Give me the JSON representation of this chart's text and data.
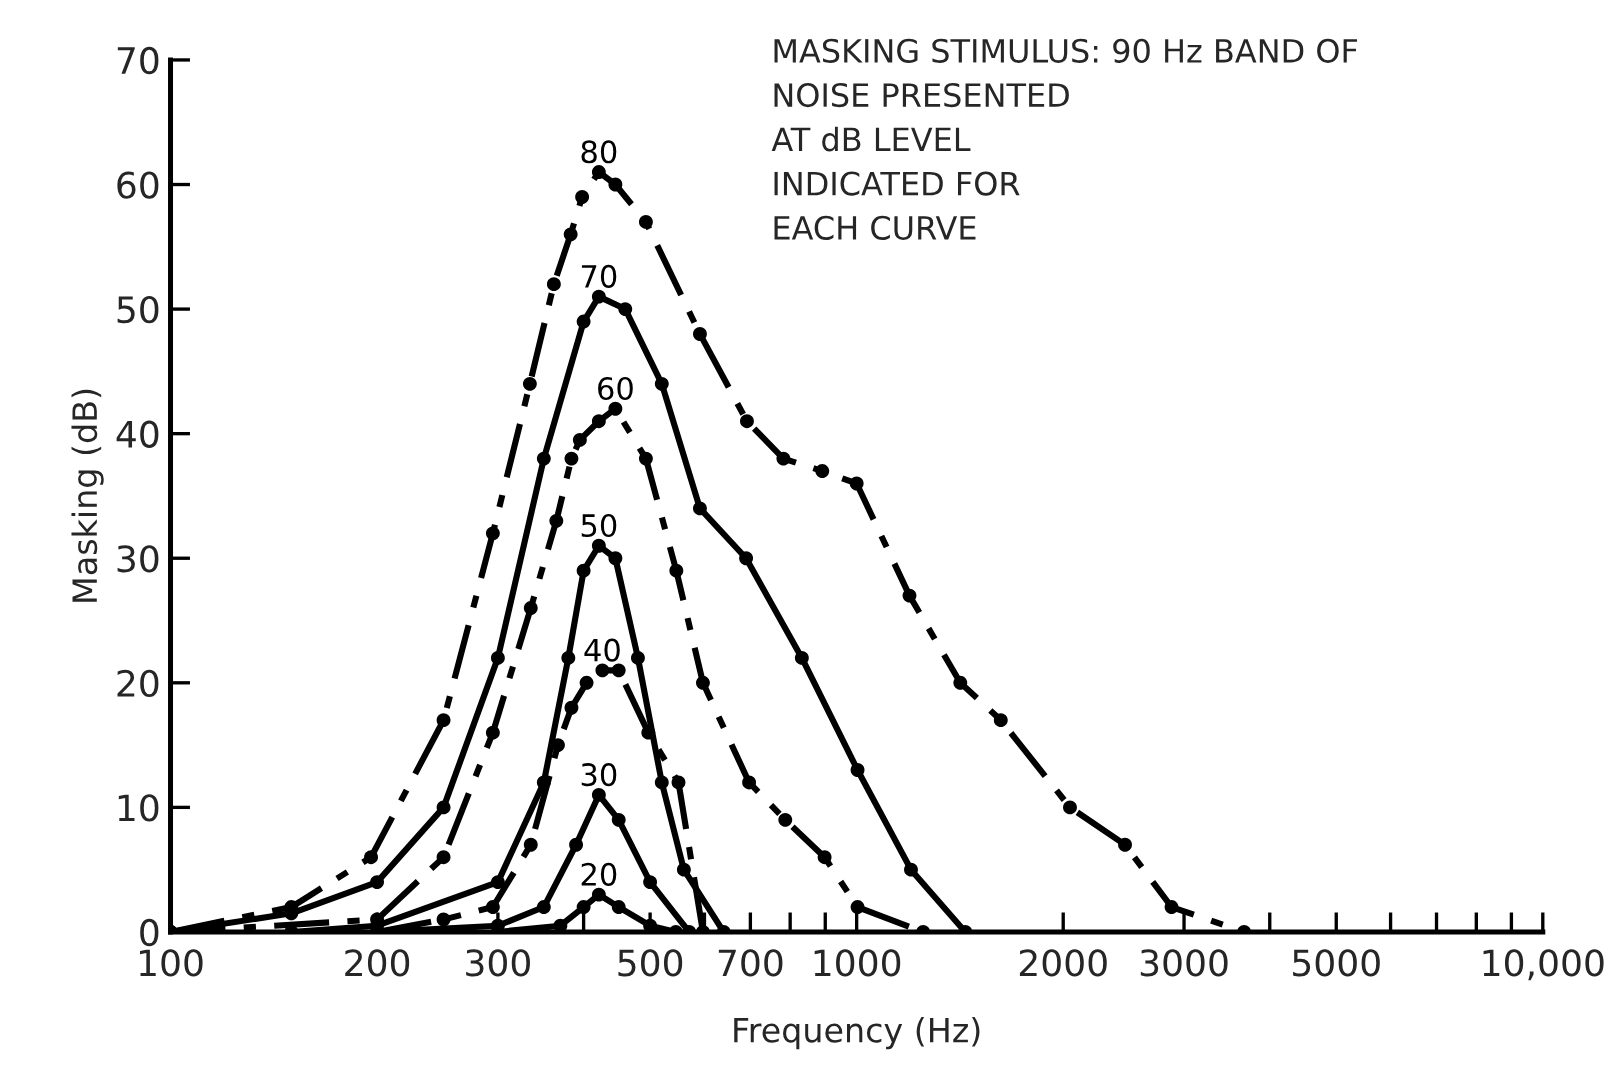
{
  "chart_data": {
    "type": "line",
    "xlabel": "Frequency (Hz)",
    "ylabel": "Masking (dB)",
    "log": "x",
    "grid": false,
    "legend": false,
    "marker": "circle",
    "xlim": [
      100,
      10000
    ],
    "xticks": [
      100,
      200,
      300,
      {
        "value": 400,
        "label": null
      },
      500,
      {
        "value": 600,
        "label": null
      },
      700,
      {
        "value": 800,
        "label": null
      },
      {
        "value": 900,
        "label": null
      },
      1000,
      2000,
      3000,
      {
        "value": 4000,
        "label": null
      },
      5000,
      {
        "value": 6000,
        "label": null
      },
      {
        "value": 7000,
        "label": null
      },
      {
        "value": 8000,
        "label": null
      },
      {
        "value": 9000,
        "label": null
      },
      {
        "value": 10000,
        "label": "10,000"
      }
    ],
    "ylim": [
      0,
      70
    ],
    "yticks": [
      0,
      10,
      20,
      30,
      40,
      50,
      60,
      70
    ],
    "annotations": [
      "MASKING STIMULUS: 90 Hz BAND OF\nNOISE PRESENTED\nAT dB LEVEL\nINDICATED FOR\nEACH CURVE"
    ],
    "series": [
      {
        "name": "80",
        "color": "#000000",
        "line_style": "dashed",
        "x": [
          100,
          150,
          196,
          250,
          295,
          334,
          362,
          383,
          398,
          421,
          445,
          493,
          591,
          692,
          782,
          891,
          1000,
          1194,
          1416,
          1622,
          2046,
          2461,
          2877,
          3670
        ],
        "values": [
          0,
          2,
          6,
          17,
          32,
          44,
          52,
          56,
          59,
          61,
          60,
          57,
          48,
          41,
          38,
          37,
          36,
          27,
          20,
          17,
          10,
          7,
          2,
          0
        ]
      },
      {
        "name": "70",
        "color": "#000000",
        "line_style": "solid",
        "x": [
          100,
          150,
          200,
          250,
          300,
          350,
          400,
          421,
          460,
          520,
          591,
          690,
          832,
          1003,
          1200,
          1440
        ],
        "values": [
          0,
          1.5,
          4,
          10,
          22,
          38,
          49,
          51,
          50,
          44,
          34,
          30,
          22,
          13,
          5,
          0
        ]
      },
      {
        "name": "60",
        "color": "#000000",
        "line_style": "dashed",
        "x": [
          100,
          200,
          250,
          295,
          335,
          365,
          384,
          395,
          421,
          445,
          493,
          546,
          597,
          697,
          787,
          898,
          1003,
          1250
        ],
        "values": [
          0,
          1,
          6,
          16,
          26,
          33,
          38,
          39.5,
          41,
          42,
          38,
          29,
          20,
          12,
          9,
          6,
          2,
          0
        ]
      },
      {
        "name": "50",
        "color": "#000000",
        "line_style": "solid",
        "x": [
          150,
          200,
          300,
          350,
          380,
          400,
          421,
          445,
          480,
          520,
          560,
          640
        ],
        "values": [
          0,
          0.5,
          4,
          12,
          22,
          29,
          31,
          30,
          22,
          12,
          5,
          0
        ]
      },
      {
        "name": "40",
        "color": "#000000",
        "line_style": "dashed",
        "x": [
          200,
          250,
          295,
          335,
          367,
          384,
          404,
          426,
          450,
          497,
          550,
          597
        ],
        "values": [
          0,
          1,
          2,
          7,
          15,
          18,
          20,
          21,
          21,
          16,
          12,
          0
        ]
      },
      {
        "name": "30",
        "color": "#000000",
        "line_style": "solid",
        "x": [
          200,
          300,
          350,
          390,
          421,
          450,
          500,
          570
        ],
        "values": [
          0,
          0.5,
          2,
          7,
          11,
          9,
          4,
          0
        ]
      },
      {
        "name": "20",
        "color": "#000000",
        "line_style": "solid",
        "x": [
          300,
          370,
          400,
          421,
          450,
          500,
          545
        ],
        "values": [
          0,
          0.5,
          2,
          3,
          2,
          0.5,
          0
        ]
      }
    ]
  }
}
